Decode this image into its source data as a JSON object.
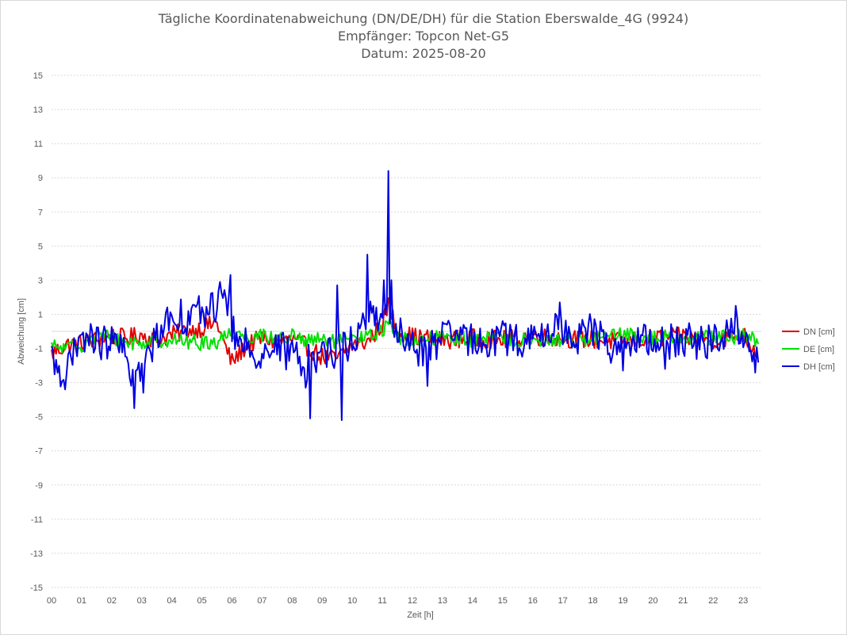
{
  "chart_data": {
    "type": "line",
    "title_lines": [
      "Tägliche Koordinatenabweichung (DN/DE/DH) für die Station Eberswalde_4G (9924)",
      "Empfänger: Topcon Net-G5",
      "Datum: 2025-08-20"
    ],
    "xlabel": "Zeit [h]",
    "ylabel": "Abweichung [cm]",
    "xlim": [
      0,
      23.5
    ],
    "ylim": [
      -15,
      15
    ],
    "x_tick_labels": [
      "00",
      "01",
      "02",
      "03",
      "04",
      "05",
      "06",
      "07",
      "08",
      "09",
      "10",
      "11",
      "12",
      "13",
      "14",
      "15",
      "16",
      "17",
      "18",
      "19",
      "20",
      "21",
      "22",
      "23"
    ],
    "y_tick_values": [
      15,
      13,
      11,
      9,
      7,
      5,
      3,
      1,
      -1,
      -3,
      -5,
      -7,
      -9,
      -11,
      -13,
      -15
    ],
    "grid": true,
    "legend_position": "right",
    "series": [
      {
        "name": "DN [cm]",
        "color": "#e00000",
        "anchors": [
          [
            0.0,
            -1.3
          ],
          [
            0.5,
            -0.8
          ],
          [
            1.0,
            -0.7
          ],
          [
            1.5,
            -0.5
          ],
          [
            2.0,
            -0.3
          ],
          [
            2.5,
            -0.4
          ],
          [
            3.0,
            -0.2
          ],
          [
            3.5,
            -0.5
          ],
          [
            4.0,
            -0.2
          ],
          [
            4.5,
            0.0
          ],
          [
            5.0,
            0.2
          ],
          [
            5.5,
            0.5
          ],
          [
            5.8,
            -1.0
          ],
          [
            6.0,
            -1.8
          ],
          [
            6.5,
            -0.8
          ],
          [
            7.0,
            -0.4
          ],
          [
            7.5,
            -0.6
          ],
          [
            8.0,
            -0.5
          ],
          [
            8.5,
            -0.9
          ],
          [
            9.0,
            -1.5
          ],
          [
            9.5,
            -1.6
          ],
          [
            10.0,
            -0.8
          ],
          [
            10.5,
            -0.6
          ],
          [
            11.0,
            0.4
          ],
          [
            11.2,
            1.6
          ],
          [
            11.5,
            0.0
          ],
          [
            12.0,
            -0.3
          ],
          [
            12.5,
            -0.4
          ],
          [
            13.0,
            -0.5
          ],
          [
            14.0,
            -0.4
          ],
          [
            15.0,
            -0.5
          ],
          [
            16.0,
            -0.3
          ],
          [
            17.0,
            -0.4
          ],
          [
            18.0,
            -0.5
          ],
          [
            19.0,
            -0.6
          ],
          [
            20.0,
            -0.4
          ],
          [
            21.0,
            -0.3
          ],
          [
            22.0,
            -0.5
          ],
          [
            23.0,
            -0.2
          ],
          [
            23.5,
            -1.3
          ]
        ],
        "noise": 0.55,
        "spikes": []
      },
      {
        "name": "DE [cm]",
        "color": "#00e000",
        "anchors": [
          [
            0.0,
            -0.9
          ],
          [
            0.5,
            -1.0
          ],
          [
            1.0,
            -0.8
          ],
          [
            1.5,
            -0.2
          ],
          [
            2.0,
            -0.4
          ],
          [
            2.5,
            -0.6
          ],
          [
            3.0,
            -0.7
          ],
          [
            3.5,
            -0.5
          ],
          [
            4.0,
            -0.5
          ],
          [
            4.5,
            -0.6
          ],
          [
            5.0,
            -0.7
          ],
          [
            5.5,
            -0.6
          ],
          [
            6.0,
            0.0
          ],
          [
            6.5,
            -0.3
          ],
          [
            7.0,
            -0.2
          ],
          [
            7.5,
            -0.4
          ],
          [
            8.0,
            -0.3
          ],
          [
            8.5,
            -0.6
          ],
          [
            9.0,
            -0.5
          ],
          [
            9.5,
            -0.6
          ],
          [
            10.0,
            -0.5
          ],
          [
            10.5,
            -0.3
          ],
          [
            11.0,
            0.0
          ],
          [
            11.2,
            0.8
          ],
          [
            11.5,
            -0.4
          ],
          [
            12.0,
            -0.6
          ],
          [
            12.5,
            -0.4
          ],
          [
            13.0,
            -0.3
          ],
          [
            14.0,
            -0.5
          ],
          [
            15.0,
            -0.4
          ],
          [
            16.0,
            -0.6
          ],
          [
            17.0,
            -0.5
          ],
          [
            18.0,
            -0.4
          ],
          [
            19.0,
            -0.2
          ],
          [
            20.0,
            -0.4
          ],
          [
            21.0,
            -0.3
          ],
          [
            22.0,
            -0.4
          ],
          [
            23.0,
            -0.3
          ],
          [
            23.5,
            -0.5
          ]
        ],
        "noise": 0.45,
        "spikes": []
      },
      {
        "name": "DH [cm]",
        "color": "#0000e0",
        "anchors": [
          [
            0.0,
            -1.6
          ],
          [
            0.4,
            -2.4
          ],
          [
            0.8,
            -1.3
          ],
          [
            1.2,
            -0.2
          ],
          [
            1.6,
            -0.7
          ],
          [
            2.0,
            -0.6
          ],
          [
            2.5,
            -1.5
          ],
          [
            2.8,
            -2.8
          ],
          [
            3.2,
            -1.6
          ],
          [
            3.6,
            0.3
          ],
          [
            4.0,
            1.0
          ],
          [
            4.5,
            0.8
          ],
          [
            5.0,
            1.1
          ],
          [
            5.5,
            1.6
          ],
          [
            5.8,
            2.0
          ],
          [
            6.1,
            -0.5
          ],
          [
            6.5,
            -0.9
          ],
          [
            7.0,
            -1.3
          ],
          [
            7.5,
            -0.9
          ],
          [
            8.0,
            -1.4
          ],
          [
            8.5,
            -1.8
          ],
          [
            9.0,
            -1.0
          ],
          [
            9.5,
            -1.2
          ],
          [
            10.0,
            -0.5
          ],
          [
            10.5,
            0.7
          ],
          [
            11.0,
            1.2
          ],
          [
            11.4,
            0.1
          ],
          [
            11.8,
            -0.6
          ],
          [
            12.2,
            -1.2
          ],
          [
            12.6,
            -0.8
          ],
          [
            13.0,
            -0.5
          ],
          [
            13.5,
            -0.2
          ],
          [
            14.0,
            -0.6
          ],
          [
            15.0,
            -0.4
          ],
          [
            16.0,
            -0.6
          ],
          [
            16.8,
            0.2
          ],
          [
            17.5,
            -0.3
          ],
          [
            18.0,
            0.1
          ],
          [
            18.5,
            -0.8
          ],
          [
            19.0,
            -0.9
          ],
          [
            19.5,
            -0.6
          ],
          [
            20.0,
            -0.7
          ],
          [
            21.0,
            -0.5
          ],
          [
            22.0,
            -0.7
          ],
          [
            22.8,
            0.4
          ],
          [
            23.2,
            -0.6
          ],
          [
            23.5,
            -2.2
          ]
        ],
        "noise": 1.05,
        "spikes": [
          [
            0.45,
            -3.4
          ],
          [
            2.75,
            -4.5
          ],
          [
            3.05,
            -3.6
          ],
          [
            5.6,
            2.9
          ],
          [
            5.95,
            3.3
          ],
          [
            8.45,
            -3.3
          ],
          [
            8.6,
            -5.1
          ],
          [
            8.78,
            -2.4
          ],
          [
            9.5,
            2.7
          ],
          [
            9.65,
            -5.2
          ],
          [
            10.5,
            4.5
          ],
          [
            11.05,
            3.0
          ],
          [
            11.2,
            9.4
          ],
          [
            11.3,
            3.0
          ],
          [
            12.5,
            -3.2
          ],
          [
            16.9,
            1.7
          ],
          [
            19.0,
            -2.3
          ],
          [
            20.4,
            -2.2
          ],
          [
            22.75,
            1.5
          ]
        ]
      }
    ]
  }
}
